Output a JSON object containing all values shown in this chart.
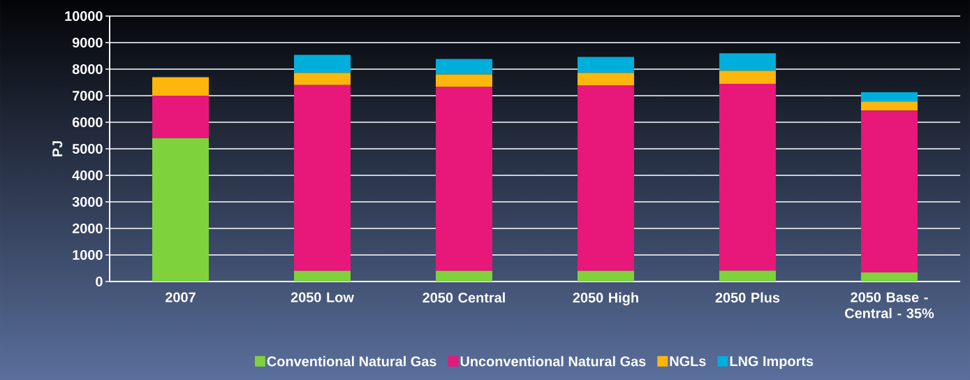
{
  "chart_data": {
    "type": "bar",
    "stacked": true,
    "ylabel": "PJ",
    "categories": [
      "2007",
      "2050 Low",
      "2050 Central",
      "2050 High",
      "2050 Plus",
      "2050 Base - Central - 35%"
    ],
    "series": [
      {
        "name": "Conventional Natural Gas",
        "color": "#7ed23b",
        "values": [
          5400,
          400,
          400,
          400,
          410,
          340
        ]
      },
      {
        "name": "Unconventional Natural Gas",
        "color": "#e8177a",
        "values": [
          1600,
          7000,
          6930,
          6980,
          7040,
          6100
        ]
      },
      {
        "name": "NGLs",
        "color": "#fdb60b",
        "values": [
          700,
          460,
          470,
          480,
          490,
          340
        ]
      },
      {
        "name": "LNG Imports",
        "color": "#00aedb",
        "values": [
          0,
          680,
          580,
          600,
          660,
          350
        ]
      }
    ],
    "ylim": [
      0,
      10000
    ],
    "yticks": [
      0,
      1000,
      2000,
      3000,
      4000,
      5000,
      6000,
      7000,
      8000,
      9000,
      10000
    ],
    "grid": "y",
    "legend": "bottom"
  }
}
